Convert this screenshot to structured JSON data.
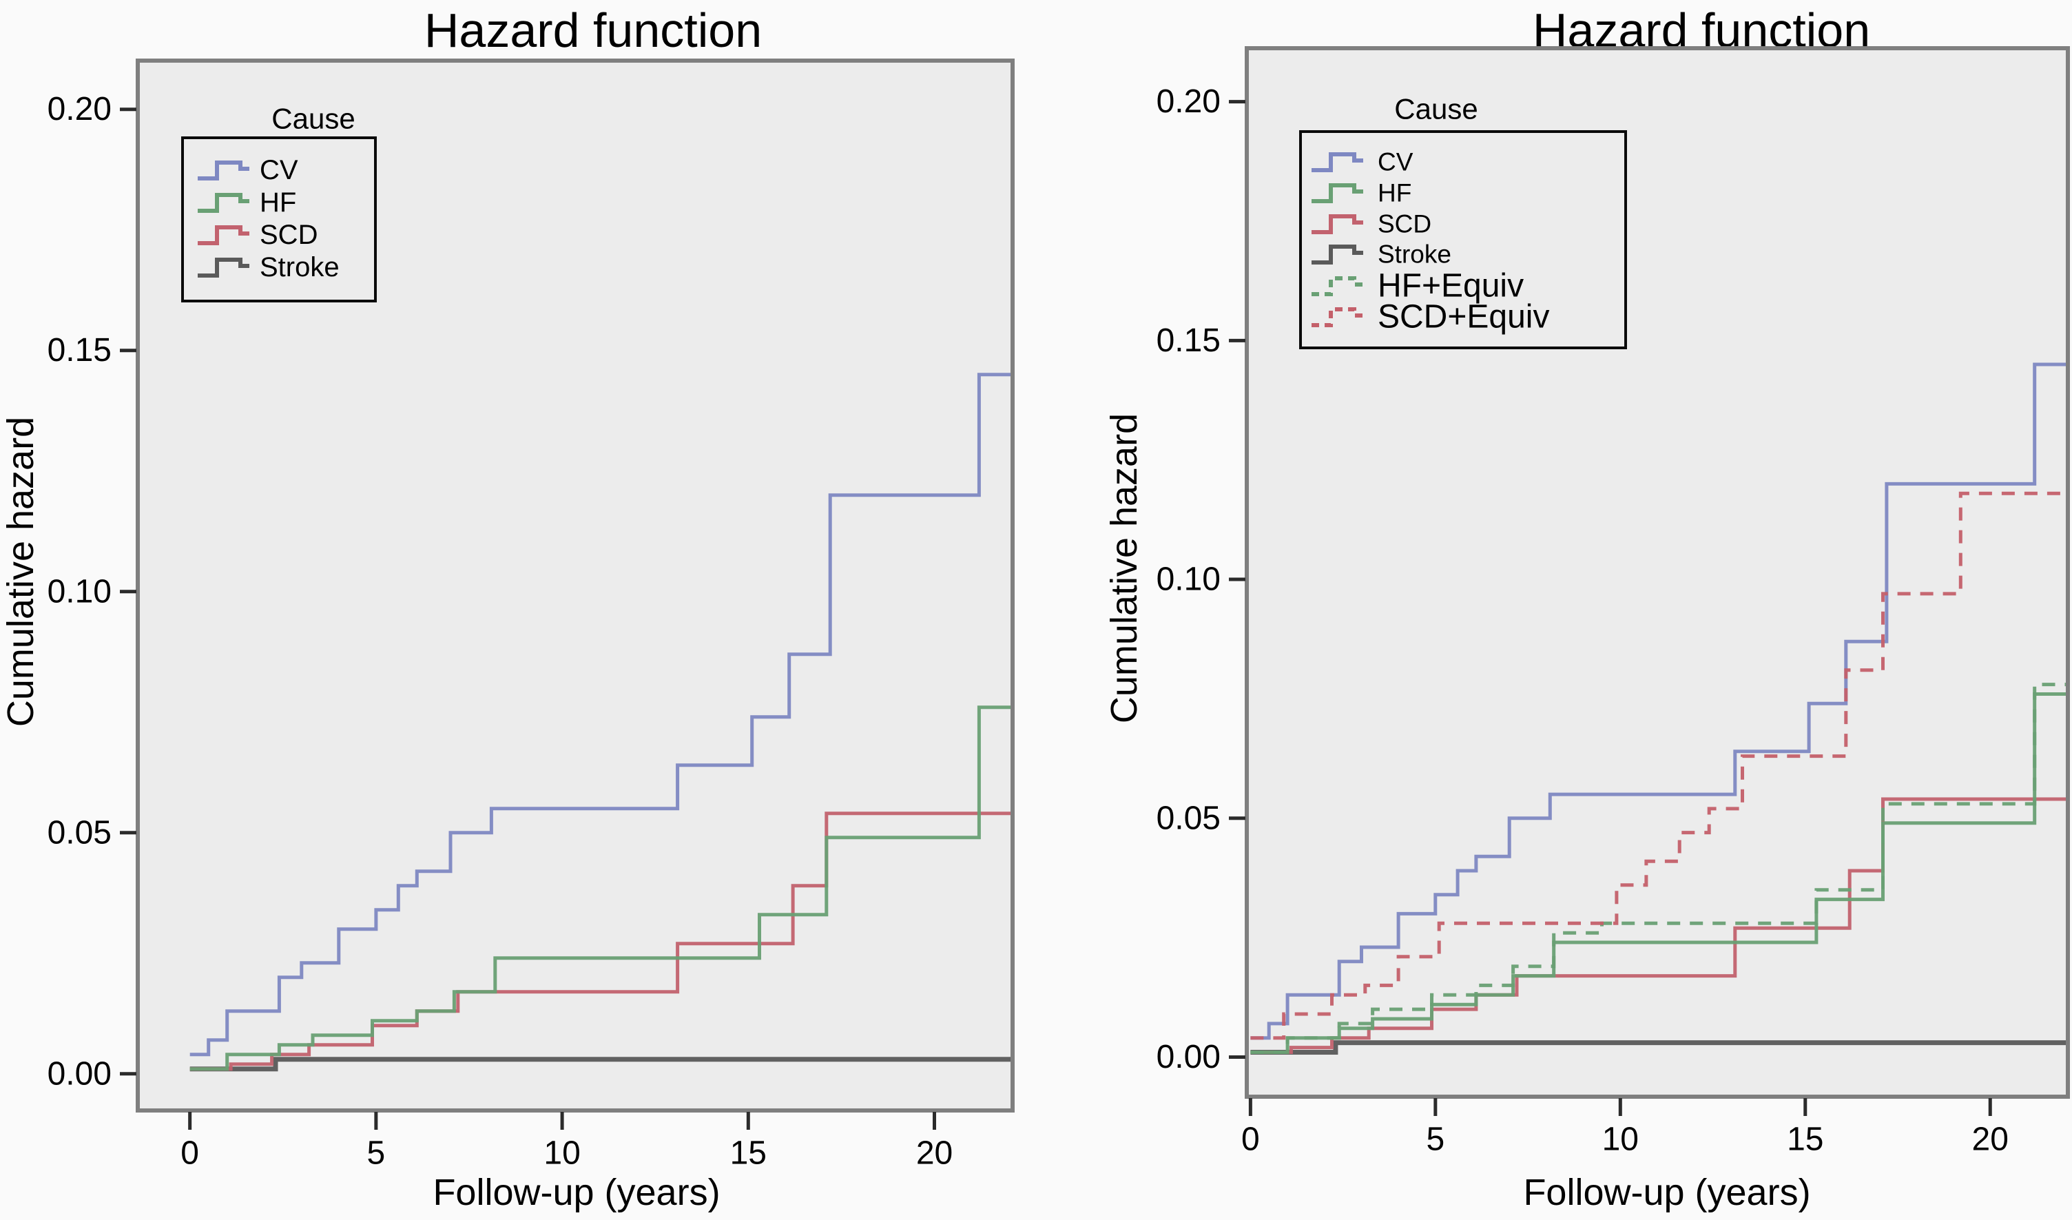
{
  "figure": {
    "background": "#fafafa",
    "plot_background": "#ececec",
    "frame_color": "#7f7f7f",
    "tick_color": "#2b2b2b",
    "colors": {
      "CV": "#7e88c2",
      "HF": "#69a074",
      "SCD": "#c2626e",
      "Stroke": "#5a5a5a",
      "HF+Equiv": "#69a074",
      "SCD+Equiv": "#c4606a"
    }
  },
  "chart_data": [
    {
      "type": "line",
      "step": "post",
      "title": "Hazard function",
      "xlabel": "Follow-up (years)",
      "ylabel": "Cumulative hazard",
      "xlim": [
        -1.4,
        22.1
      ],
      "ylim": [
        -0.0076,
        0.2101
      ],
      "grid": false,
      "plot_bg": "#ececec",
      "x_ticks": {
        "values": [
          0,
          5,
          10,
          15,
          20
        ],
        "labels": [
          "0",
          "5",
          "10",
          "15",
          "20"
        ]
      },
      "y_ticks": {
        "values": [
          0,
          0.05,
          0.1,
          0.15,
          0.2
        ],
        "labels": [
          "0.00",
          "0.05",
          "0.10",
          "0.15",
          "0.20"
        ]
      },
      "legend": {
        "title": "Cause",
        "position": "upper-left-inside",
        "entries": [
          "CV",
          "HF",
          "SCD",
          "Stroke"
        ]
      },
      "series": [
        {
          "name": "CV",
          "color": "#7e88c2",
          "line": "solid",
          "x": [
            0,
            0.5,
            1,
            2.4,
            3,
            4,
            5,
            5.6,
            6.1,
            7,
            8.1,
            13.1,
            15.1,
            16.1,
            17.2,
            21.2
          ],
          "y": [
            0.004,
            0.007,
            0.013,
            0.02,
            0.023,
            0.03,
            0.034,
            0.039,
            0.042,
            0.05,
            0.055,
            0.064,
            0.074,
            0.087,
            0.12,
            0.145
          ]
        },
        {
          "name": "HF",
          "color": "#69a074",
          "line": "solid",
          "x": [
            0,
            1,
            2.4,
            3.3,
            4.9,
            6.1,
            7.1,
            8.2,
            15.3,
            17.1,
            21.2
          ],
          "y": [
            0.001,
            0.004,
            0.006,
            0.008,
            0.011,
            0.013,
            0.017,
            0.024,
            0.033,
            0.049,
            0.076
          ]
        },
        {
          "name": "SCD",
          "color": "#c2626e",
          "line": "solid",
          "x": [
            0,
            1.1,
            2.2,
            3.2,
            4.9,
            6.1,
            7.2,
            13.1,
            16.2,
            17.1
          ],
          "y": [
            0.001,
            0.002,
            0.004,
            0.006,
            0.01,
            0.013,
            0.017,
            0.027,
            0.039,
            0.054
          ]
        },
        {
          "name": "Stroke",
          "color": "#5a5a5a",
          "line": "solid",
          "x": [
            0,
            2.3
          ],
          "y": [
            0.001,
            0.003
          ]
        }
      ]
    },
    {
      "type": "line",
      "step": "post",
      "title": "Hazard function",
      "xlabel": "Follow-up (years)",
      "ylabel": "Cumulative hazard",
      "xlim": [
        -0.1,
        22.1
      ],
      "ylim": [
        -0.0083,
        0.2112
      ],
      "grid": false,
      "plot_bg": "#ececec",
      "x_ticks": {
        "values": [
          0,
          5,
          10,
          15,
          20
        ],
        "labels": [
          "0",
          "5",
          "10",
          "15",
          "20"
        ]
      },
      "y_ticks": {
        "values": [
          0,
          0.05,
          0.1,
          0.15,
          0.2
        ],
        "labels": [
          "0.00",
          "0.05",
          "0.10",
          "0.15",
          "0.20"
        ]
      },
      "legend": {
        "title": "Cause",
        "position": "upper-left-inside",
        "entries": [
          "CV",
          "HF",
          "SCD",
          "Stroke",
          "HF+Equiv",
          "SCD+Equiv"
        ]
      },
      "series": [
        {
          "name": "CV",
          "color": "#7e88c2",
          "line": "solid",
          "x": [
            0,
            0.5,
            1,
            2.4,
            3,
            4,
            5,
            5.6,
            6.1,
            7,
            8.1,
            13.1,
            15.1,
            16.1,
            17.2,
            21.2
          ],
          "y": [
            0.004,
            0.007,
            0.013,
            0.02,
            0.023,
            0.03,
            0.034,
            0.039,
            0.042,
            0.05,
            0.055,
            0.064,
            0.074,
            0.087,
            0.12,
            0.145
          ]
        },
        {
          "name": "HF",
          "color": "#69a074",
          "line": "solid",
          "x": [
            0,
            1,
            2.4,
            3.3,
            4.9,
            6.1,
            7.1,
            8.2,
            15.3,
            17.1,
            21.2
          ],
          "y": [
            0.001,
            0.004,
            0.006,
            0.008,
            0.011,
            0.013,
            0.017,
            0.024,
            0.033,
            0.049,
            0.076
          ]
        },
        {
          "name": "SCD",
          "color": "#c2626e",
          "line": "solid",
          "x": [
            0,
            1.1,
            2.2,
            3.2,
            4.9,
            6.1,
            7.2,
            13.1,
            16.2,
            17.1
          ],
          "y": [
            0.001,
            0.002,
            0.004,
            0.006,
            0.01,
            0.013,
            0.017,
            0.027,
            0.039,
            0.054
          ]
        },
        {
          "name": "Stroke",
          "color": "#5a5a5a",
          "line": "solid",
          "x": [
            0,
            2.3
          ],
          "y": [
            0.001,
            0.003
          ]
        },
        {
          "name": "HF+Equiv",
          "color": "#69a074",
          "line": "dashed",
          "x": [
            0,
            1,
            2.4,
            3.3,
            4.9,
            6.1,
            7.1,
            8.2,
            9.5,
            15.3,
            17.1,
            21.2
          ],
          "y": [
            0.001,
            0.004,
            0.007,
            0.01,
            0.013,
            0.015,
            0.019,
            0.026,
            0.028,
            0.035,
            0.053,
            0.078
          ]
        },
        {
          "name": "SCD+Equiv",
          "color": "#c4606a",
          "line": "dashed",
          "x": [
            0,
            0.9,
            2.2,
            3.1,
            4,
            5.1,
            9.9,
            10.7,
            11.6,
            12.4,
            13.3,
            16.1,
            17.1,
            19.2
          ],
          "y": [
            0.004,
            0.009,
            0.013,
            0.015,
            0.021,
            0.028,
            0.036,
            0.041,
            0.047,
            0.052,
            0.063,
            0.081,
            0.097,
            0.118
          ]
        }
      ]
    }
  ]
}
